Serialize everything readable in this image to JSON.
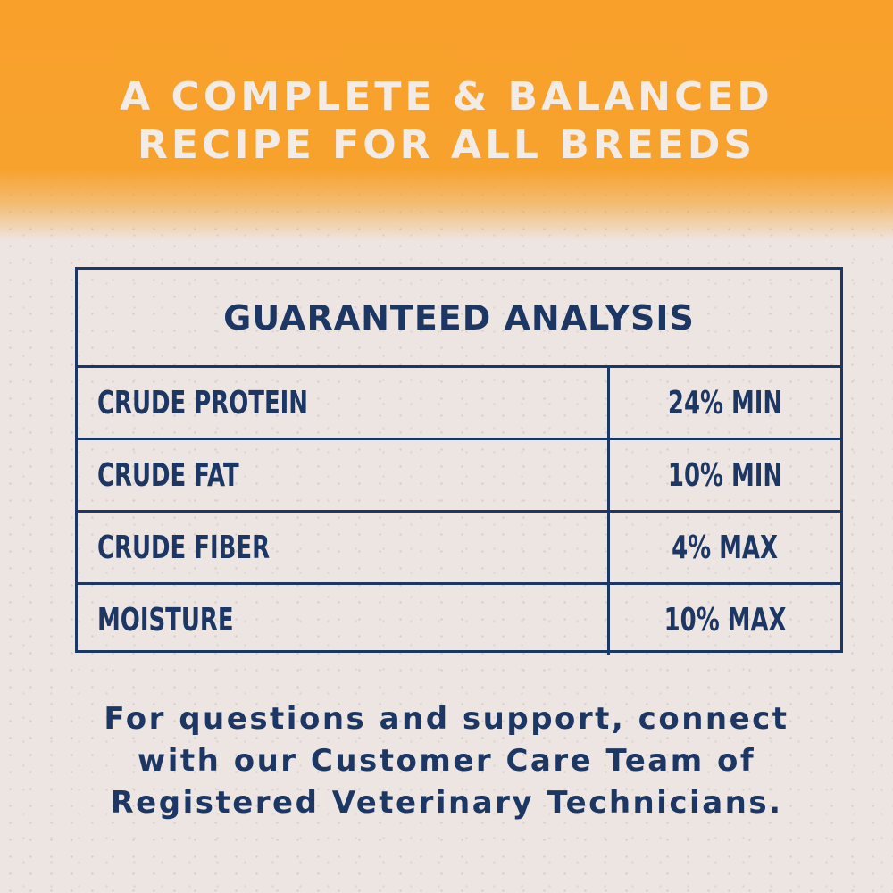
{
  "headline": [
    "A COMPLETE & BALANCED",
    "RECIPE FOR ALL BREEDS"
  ],
  "table": {
    "title": "GUARANTEED ANALYSIS",
    "rows": [
      {
        "name": "CRUDE PROTEIN",
        "value": "24% MIN"
      },
      {
        "name": "CRUDE FAT",
        "value": "10% MIN"
      },
      {
        "name": "CRUDE FIBER",
        "value": "4% MAX"
      },
      {
        "name": "MOISTURE",
        "value": "10% MAX"
      }
    ]
  },
  "footer": [
    "For questions and support, connect",
    "with our Customer Care Team of",
    "Registered Veterinary Technicians."
  ],
  "colors": {
    "orange": "#f8a02a",
    "navy": "#1c3764",
    "background": "#ede5e1"
  }
}
